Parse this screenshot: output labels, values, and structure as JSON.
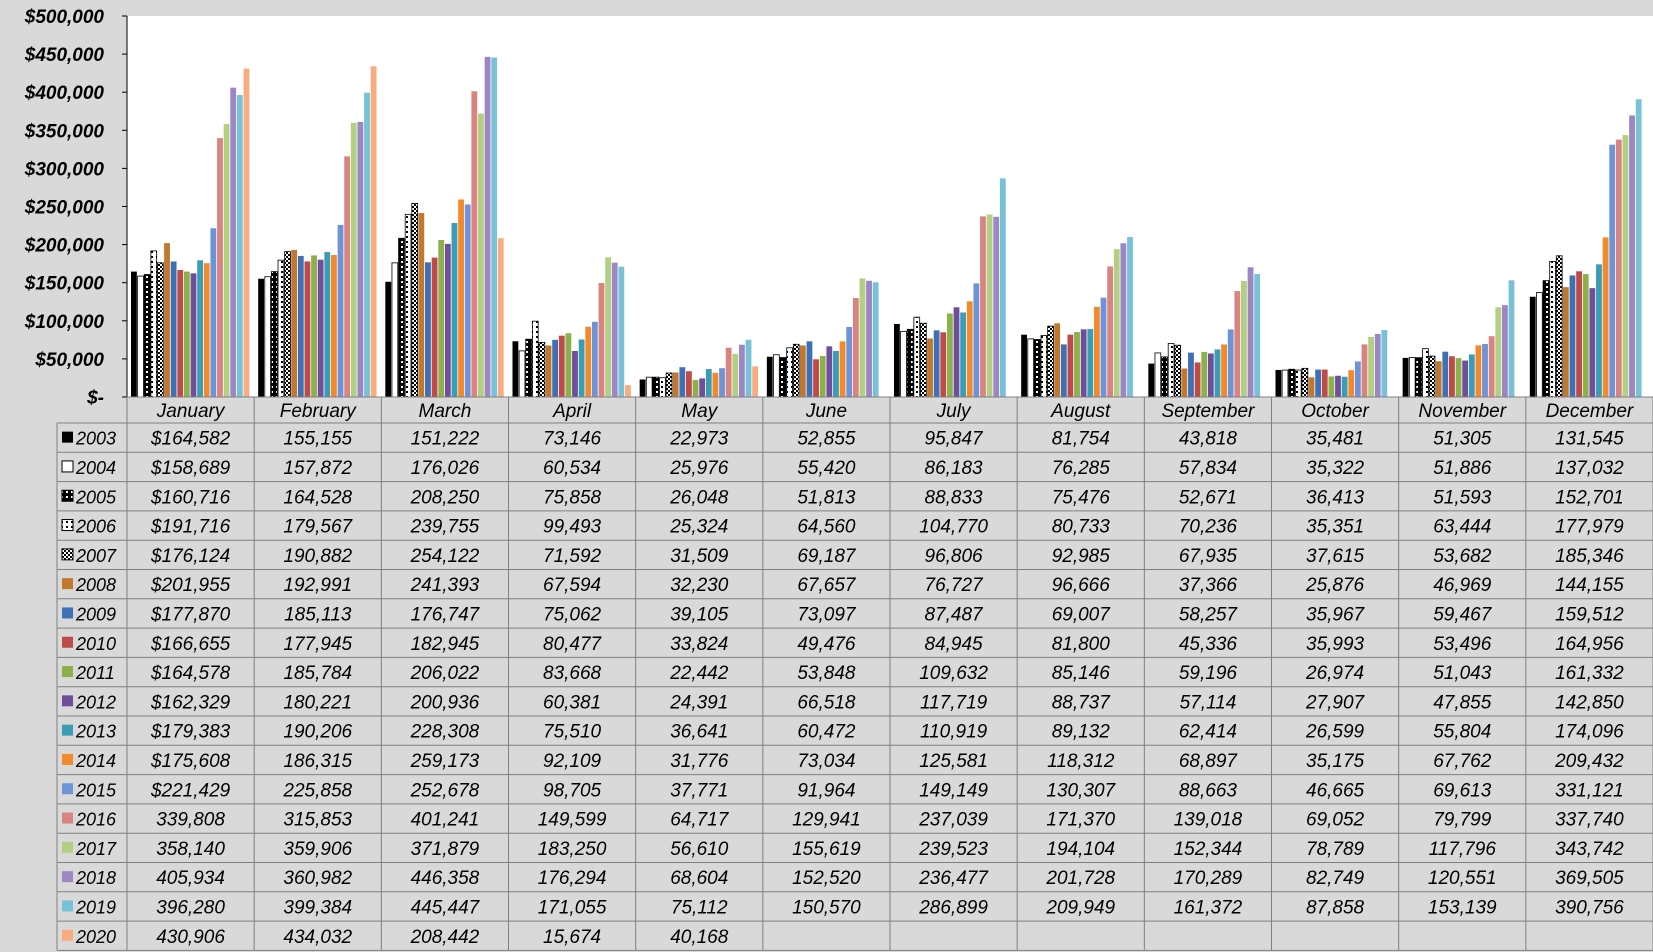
{
  "chart_data": {
    "type": "bar",
    "ylim": [
      0,
      500000
    ],
    "ytick_values": [
      0,
      50000,
      100000,
      150000,
      200000,
      250000,
      300000,
      350000,
      400000,
      450000,
      500000
    ],
    "ytick_labels": [
      "$-",
      "$50,000",
      "$100,000",
      "$150,000",
      "$200,000",
      "$250,000",
      "$300,000",
      "$350,000",
      "$400,000",
      "$450,000",
      "$500,000"
    ],
    "categories": [
      "January",
      "February",
      "March",
      "April",
      "May",
      "June",
      "July",
      "August",
      "September",
      "October",
      "November",
      "December"
    ],
    "grid": false,
    "legend": "data-table",
    "series": [
      {
        "name": "2003",
        "color": "#000000",
        "pattern": "solid",
        "values": [
          164582,
          155155,
          151222,
          73146,
          22973,
          52855,
          95847,
          81754,
          43818,
          35481,
          51305,
          131545
        ],
        "labels": [
          "$164,582",
          "155,155",
          "151,222",
          "73,146",
          "22,973",
          "52,855",
          "95,847",
          "81,754",
          "43,818",
          "35,481",
          "51,305",
          "131,545"
        ]
      },
      {
        "name": "2004",
        "color": "#ffffff",
        "pattern": "white-outline",
        "values": [
          158689,
          157872,
          176026,
          60534,
          25976,
          55420,
          86183,
          76285,
          57834,
          35322,
          51886,
          137032
        ],
        "labels": [
          "$158,689",
          "157,872",
          "176,026",
          "60,534",
          "25,976",
          "55,420",
          "86,183",
          "76,285",
          "57,834",
          "35,322",
          "51,886",
          "137,032"
        ]
      },
      {
        "name": "2005",
        "color": "#000000",
        "pattern": "black-dots",
        "values": [
          160716,
          164528,
          208250,
          75858,
          26048,
          51813,
          88833,
          75476,
          52671,
          36413,
          51593,
          152701
        ],
        "labels": [
          "$160,716",
          "164,528",
          "208,250",
          "75,858",
          "26,048",
          "51,813",
          "88,833",
          "75,476",
          "52,671",
          "36,413",
          "51,593",
          "152,701"
        ]
      },
      {
        "name": "2006",
        "color": "#ffffff",
        "pattern": "white-dots",
        "values": [
          191716,
          179567,
          239755,
          99493,
          25324,
          64560,
          104770,
          80733,
          70236,
          35351,
          63444,
          177979
        ],
        "labels": [
          "$191,716",
          "179,567",
          "239,755",
          "99,493",
          "25,324",
          "64,560",
          "104,770",
          "80,733",
          "70,236",
          "35,351",
          "63,444",
          "177,979"
        ]
      },
      {
        "name": "2007",
        "color": "#000000",
        "pattern": "checker",
        "values": [
          176124,
          190882,
          254122,
          71592,
          31509,
          69187,
          96806,
          92985,
          67935,
          37615,
          53682,
          185346
        ],
        "labels": [
          "$176,124",
          "190,882",
          "254,122",
          "71,592",
          "31,509",
          "69,187",
          "96,806",
          "92,985",
          "67,935",
          "37,615",
          "53,682",
          "185,346"
        ]
      },
      {
        "name": "2008",
        "color": "#c0782f",
        "pattern": "solid",
        "values": [
          201955,
          192991,
          241393,
          67594,
          32230,
          67657,
          76727,
          96666,
          37366,
          25876,
          46969,
          144155
        ],
        "labels": [
          "$201,955",
          "192,991",
          "241,393",
          "67,594",
          "32,230",
          "67,657",
          "76,727",
          "96,666",
          "37,366",
          "25,876",
          "46,969",
          "144,155"
        ]
      },
      {
        "name": "2009",
        "color": "#3f6fb5",
        "pattern": "solid",
        "values": [
          177870,
          185113,
          176747,
          75062,
          39105,
          73097,
          87487,
          69007,
          58257,
          35967,
          59467,
          159512
        ],
        "labels": [
          "$177,870",
          "185,113",
          "176,747",
          "75,062",
          "39,105",
          "73,097",
          "87,487",
          "69,007",
          "58,257",
          "35,967",
          "59,467",
          "159,512"
        ]
      },
      {
        "name": "2010",
        "color": "#be4b48",
        "pattern": "solid",
        "values": [
          166655,
          177945,
          182945,
          80477,
          33824,
          49476,
          84945,
          81800,
          45336,
          35993,
          53496,
          164956
        ],
        "labels": [
          "$166,655",
          "177,945",
          "182,945",
          "80,477",
          "33,824",
          "49,476",
          "84,945",
          "81,800",
          "45,336",
          "35,993",
          "53,496",
          "164,956"
        ]
      },
      {
        "name": "2011",
        "color": "#8cb04c",
        "pattern": "solid",
        "values": [
          164578,
          185784,
          206022,
          83668,
          22442,
          53848,
          109632,
          85146,
          59196,
          26974,
          51043,
          161332
        ],
        "labels": [
          "$164,578",
          "185,784",
          "206,022",
          "83,668",
          "22,442",
          "53,848",
          "109,632",
          "85,146",
          "59,196",
          "26,974",
          "51,043",
          "161,332"
        ]
      },
      {
        "name": "2012",
        "color": "#6f4f9a",
        "pattern": "solid",
        "values": [
          162329,
          180221,
          200936,
          60381,
          24391,
          66518,
          117719,
          88737,
          57114,
          27907,
          47855,
          142850
        ],
        "labels": [
          "$162,329",
          "180,221",
          "200,936",
          "60,381",
          "24,391",
          "66,518",
          "117,719",
          "88,737",
          "57,114",
          "27,907",
          "47,855",
          "142,850"
        ]
      },
      {
        "name": "2013",
        "color": "#3b9cb5",
        "pattern": "solid",
        "values": [
          179383,
          190206,
          228308,
          75510,
          36641,
          60472,
          110919,
          89132,
          62414,
          26599,
          55804,
          174096
        ],
        "labels": [
          "$179,383",
          "190,206",
          "228,308",
          "75,510",
          "36,641",
          "60,472",
          "110,919",
          "89,132",
          "62,414",
          "26,599",
          "55,804",
          "174,096"
        ]
      },
      {
        "name": "2014",
        "color": "#f08a2c",
        "pattern": "solid",
        "values": [
          175608,
          186315,
          259173,
          92109,
          31776,
          73034,
          125581,
          118312,
          68897,
          35175,
          67762,
          209432
        ],
        "labels": [
          "$175,608",
          "186,315",
          "259,173",
          "92,109",
          "31,776",
          "73,034",
          "125,581",
          "118,312",
          "68,897",
          "35,175",
          "67,762",
          "209,432"
        ]
      },
      {
        "name": "2015",
        "color": "#6e93d6",
        "pattern": "solid",
        "values": [
          221429,
          225858,
          252678,
          98705,
          37771,
          91964,
          149149,
          130307,
          88663,
          46665,
          69613,
          331121
        ],
        "labels": [
          "$221,429",
          "225,858",
          "252,678",
          "98,705",
          "37,771",
          "91,964",
          "149,149",
          "130,307",
          "88,663",
          "46,665",
          "69,613",
          "331,121"
        ]
      },
      {
        "name": "2016",
        "color": "#d98481",
        "pattern": "solid",
        "values": [
          339808,
          315853,
          401241,
          149599,
          64717,
          129941,
          237039,
          171370,
          139018,
          69052,
          79799,
          337740
        ],
        "labels": [
          "339,808",
          "315,853",
          "401,241",
          "149,599",
          "64,717",
          "129,941",
          "237,039",
          "171,370",
          "139,018",
          "69,052",
          "79,799",
          "337,740"
        ]
      },
      {
        "name": "2017",
        "color": "#b2cf83",
        "pattern": "solid",
        "values": [
          358140,
          359906,
          371879,
          183250,
          56610,
          155619,
          239523,
          194104,
          152344,
          78789,
          117796,
          343742
        ],
        "labels": [
          "358,140",
          "359,906",
          "371,879",
          "183,250",
          "56,610",
          "155,619",
          "239,523",
          "194,104",
          "152,344",
          "78,789",
          "117,796",
          "343,742"
        ]
      },
      {
        "name": "2018",
        "color": "#9c86c3",
        "pattern": "solid",
        "values": [
          405934,
          360982,
          446358,
          176294,
          68604,
          152520,
          236477,
          201728,
          170289,
          82749,
          120551,
          369505
        ],
        "labels": [
          "405,934",
          "360,982",
          "446,358",
          "176,294",
          "68,604",
          "152,520",
          "236,477",
          "201,728",
          "170,289",
          "82,749",
          "120,551",
          "369,505"
        ]
      },
      {
        "name": "2019",
        "color": "#78c1d6",
        "pattern": "solid",
        "values": [
          396280,
          399384,
          445447,
          171055,
          75112,
          150570,
          286899,
          209949,
          161372,
          87858,
          153139,
          390756
        ],
        "labels": [
          "396,280",
          "399,384",
          "445,447",
          "171,055",
          "75,112",
          "150,570",
          "286,899",
          "209,949",
          "161,372",
          "87,858",
          "153,139",
          "390,756"
        ]
      },
      {
        "name": "2020",
        "color": "#f9ac7f",
        "pattern": "solid",
        "values": [
          430906,
          434032,
          208442,
          15674,
          40168,
          null,
          null,
          null,
          null,
          null,
          null,
          null
        ],
        "labels": [
          "430,906",
          "434,032",
          "208,442",
          "15,674",
          "40,168",
          "",
          "",
          "",
          "",
          "",
          "",
          ""
        ]
      }
    ]
  }
}
